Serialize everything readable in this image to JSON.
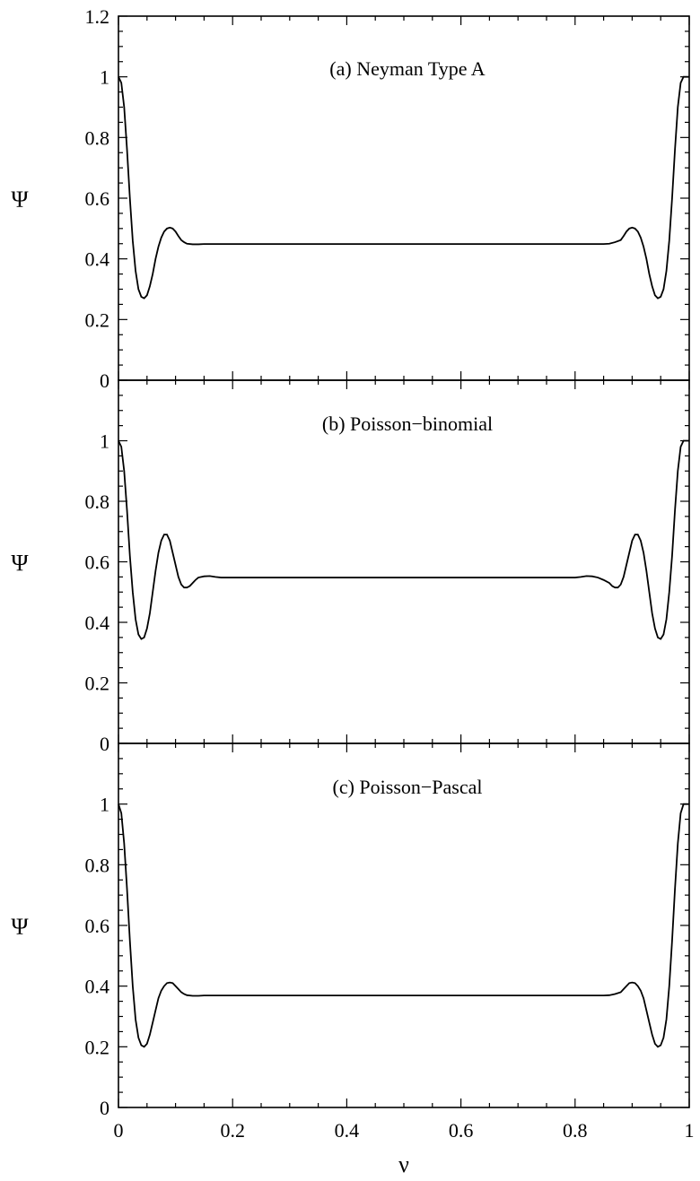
{
  "chart_data": [
    {
      "type": "line",
      "title": "(a) Neyman Type A",
      "xlabel": "ν",
      "ylabel": "Ψ",
      "xlim": [
        0,
        1
      ],
      "ylim": [
        0,
        1.2
      ],
      "yticks": [
        0,
        0.2,
        0.4,
        0.6,
        0.8,
        1,
        1.2
      ],
      "ytick_labels": [
        "0",
        "0.2",
        "0.4",
        "0.6",
        "0.8",
        "1",
        "1.2"
      ],
      "xticks": [
        0,
        0.2,
        0.4,
        0.6,
        0.8,
        1
      ],
      "xtick_labels": [
        "0",
        "0.2",
        "0.4",
        "0.6",
        "0.8",
        "1"
      ],
      "series": [
        {
          "x": [
            0,
            0.005,
            0.01,
            0.015,
            0.02,
            0.025,
            0.03,
            0.035,
            0.04,
            0.045,
            0.05,
            0.055,
            0.06,
            0.065,
            0.07,
            0.075,
            0.08,
            0.085,
            0.09,
            0.095,
            0.1,
            0.105,
            0.11,
            0.115,
            0.12,
            0.13,
            0.14,
            0.15,
            0.17,
            0.2,
            0.3,
            0.4,
            0.5,
            0.6,
            0.7,
            0.8,
            0.83,
            0.85,
            0.86,
            0.87,
            0.88,
            0.885,
            0.89,
            0.895,
            0.9,
            0.905,
            0.91,
            0.915,
            0.92,
            0.925,
            0.93,
            0.935,
            0.94,
            0.945,
            0.95,
            0.955,
            0.96,
            0.965,
            0.97,
            0.975,
            0.98,
            0.985,
            0.99,
            0.995,
            1
          ],
          "y": [
            1.0,
            0.98,
            0.9,
            0.76,
            0.6,
            0.46,
            0.36,
            0.3,
            0.275,
            0.27,
            0.28,
            0.31,
            0.35,
            0.4,
            0.44,
            0.47,
            0.49,
            0.5,
            0.503,
            0.5,
            0.49,
            0.475,
            0.462,
            0.455,
            0.45,
            0.448,
            0.448,
            0.449,
            0.449,
            0.449,
            0.449,
            0.449,
            0.449,
            0.449,
            0.449,
            0.449,
            0.449,
            0.449,
            0.45,
            0.455,
            0.462,
            0.475,
            0.49,
            0.5,
            0.503,
            0.5,
            0.49,
            0.47,
            0.44,
            0.4,
            0.35,
            0.31,
            0.28,
            0.27,
            0.275,
            0.3,
            0.36,
            0.46,
            0.6,
            0.76,
            0.9,
            0.98,
            1.0,
            1.0,
            1.0
          ]
        }
      ]
    },
    {
      "type": "line",
      "title": "(b) Poisson−binomial",
      "xlabel": "ν",
      "ylabel": "Ψ",
      "xlim": [
        0,
        1
      ],
      "ylim": [
        0,
        1.2
      ],
      "yticks": [
        0,
        0.2,
        0.4,
        0.6,
        0.8,
        1
      ],
      "ytick_labels": [
        "0",
        "0.2",
        "0.4",
        "0.6",
        "0.8",
        "1"
      ],
      "xticks": [
        0,
        0.2,
        0.4,
        0.6,
        0.8,
        1
      ],
      "xtick_labels": [
        "0",
        "0.2",
        "0.4",
        "0.6",
        "0.8",
        "1"
      ],
      "series": [
        {
          "x": [
            0,
            0.005,
            0.01,
            0.015,
            0.02,
            0.025,
            0.03,
            0.035,
            0.04,
            0.045,
            0.05,
            0.055,
            0.06,
            0.065,
            0.07,
            0.075,
            0.08,
            0.085,
            0.09,
            0.095,
            0.1,
            0.105,
            0.11,
            0.115,
            0.12,
            0.125,
            0.13,
            0.135,
            0.14,
            0.15,
            0.16,
            0.17,
            0.18,
            0.19,
            0.2,
            0.22,
            0.25,
            0.3,
            0.4,
            0.5,
            0.6,
            0.7,
            0.75,
            0.78,
            0.8,
            0.81,
            0.82,
            0.83,
            0.84,
            0.85,
            0.86,
            0.865,
            0.87,
            0.875,
            0.88,
            0.885,
            0.89,
            0.895,
            0.9,
            0.905,
            0.91,
            0.915,
            0.92,
            0.925,
            0.93,
            0.935,
            0.94,
            0.945,
            0.95,
            0.955,
            0.96,
            0.965,
            0.97,
            0.975,
            0.98,
            0.985,
            0.99,
            0.995,
            1
          ],
          "y": [
            1.0,
            0.98,
            0.9,
            0.77,
            0.62,
            0.5,
            0.41,
            0.36,
            0.345,
            0.35,
            0.38,
            0.43,
            0.5,
            0.57,
            0.63,
            0.67,
            0.69,
            0.69,
            0.67,
            0.63,
            0.59,
            0.55,
            0.525,
            0.515,
            0.515,
            0.52,
            0.53,
            0.54,
            0.548,
            0.552,
            0.553,
            0.55,
            0.548,
            0.548,
            0.548,
            0.548,
            0.548,
            0.548,
            0.548,
            0.548,
            0.548,
            0.548,
            0.548,
            0.548,
            0.548,
            0.55,
            0.553,
            0.552,
            0.548,
            0.54,
            0.53,
            0.52,
            0.515,
            0.515,
            0.525,
            0.55,
            0.59,
            0.63,
            0.67,
            0.69,
            0.69,
            0.67,
            0.63,
            0.57,
            0.5,
            0.43,
            0.38,
            0.35,
            0.345,
            0.36,
            0.41,
            0.5,
            0.62,
            0.77,
            0.9,
            0.98,
            1.0,
            1.0,
            1.0
          ]
        }
      ]
    },
    {
      "type": "line",
      "title": "(c) Poisson−Pascal",
      "xlabel": "ν",
      "ylabel": "Ψ",
      "xlim": [
        0,
        1
      ],
      "ylim": [
        0,
        1.2
      ],
      "yticks": [
        0,
        0.2,
        0.4,
        0.6,
        0.8,
        1
      ],
      "ytick_labels": [
        "0",
        "0.2",
        "0.4",
        "0.6",
        "0.8",
        "1"
      ],
      "xticks": [
        0,
        0.2,
        0.4,
        0.6,
        0.8,
        1
      ],
      "xtick_labels": [
        "0",
        "0.2",
        "0.4",
        "0.6",
        "0.8",
        "1"
      ],
      "series": [
        {
          "x": [
            0,
            0.005,
            0.01,
            0.015,
            0.02,
            0.025,
            0.03,
            0.035,
            0.04,
            0.045,
            0.05,
            0.055,
            0.06,
            0.065,
            0.07,
            0.075,
            0.08,
            0.085,
            0.09,
            0.095,
            0.1,
            0.105,
            0.11,
            0.115,
            0.12,
            0.13,
            0.14,
            0.15,
            0.17,
            0.2,
            0.3,
            0.4,
            0.5,
            0.6,
            0.7,
            0.8,
            0.83,
            0.85,
            0.86,
            0.87,
            0.88,
            0.885,
            0.89,
            0.895,
            0.9,
            0.905,
            0.91,
            0.915,
            0.92,
            0.925,
            0.93,
            0.935,
            0.94,
            0.945,
            0.95,
            0.955,
            0.96,
            0.965,
            0.97,
            0.975,
            0.98,
            0.985,
            0.99,
            0.995,
            1
          ],
          "y": [
            1.0,
            0.97,
            0.87,
            0.72,
            0.55,
            0.4,
            0.29,
            0.23,
            0.205,
            0.2,
            0.21,
            0.24,
            0.28,
            0.32,
            0.36,
            0.385,
            0.4,
            0.41,
            0.412,
            0.41,
            0.4,
            0.39,
            0.38,
            0.374,
            0.37,
            0.368,
            0.368,
            0.369,
            0.369,
            0.369,
            0.369,
            0.369,
            0.369,
            0.369,
            0.369,
            0.369,
            0.369,
            0.369,
            0.37,
            0.374,
            0.38,
            0.39,
            0.4,
            0.41,
            0.412,
            0.41,
            0.4,
            0.385,
            0.36,
            0.32,
            0.28,
            0.24,
            0.21,
            0.2,
            0.205,
            0.23,
            0.29,
            0.4,
            0.55,
            0.72,
            0.87,
            0.97,
            1.0,
            1.0,
            1.0
          ]
        }
      ]
    }
  ]
}
